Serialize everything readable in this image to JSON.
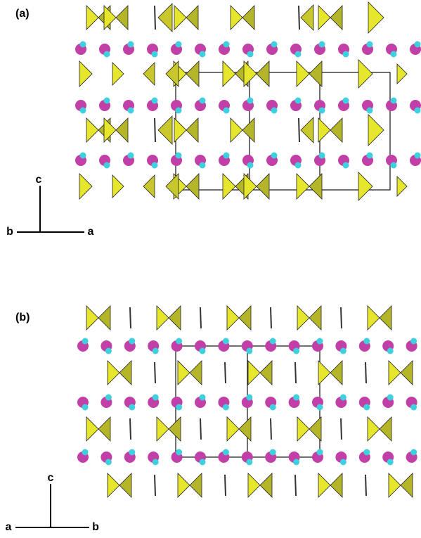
{
  "panels": [
    {
      "label": "(a)",
      "axes": {
        "up": "c",
        "left": "b",
        "right": "a"
      }
    },
    {
      "label": "(b)",
      "axes": {
        "up": "c",
        "left": "a",
        "right": "b"
      }
    }
  ]
}
